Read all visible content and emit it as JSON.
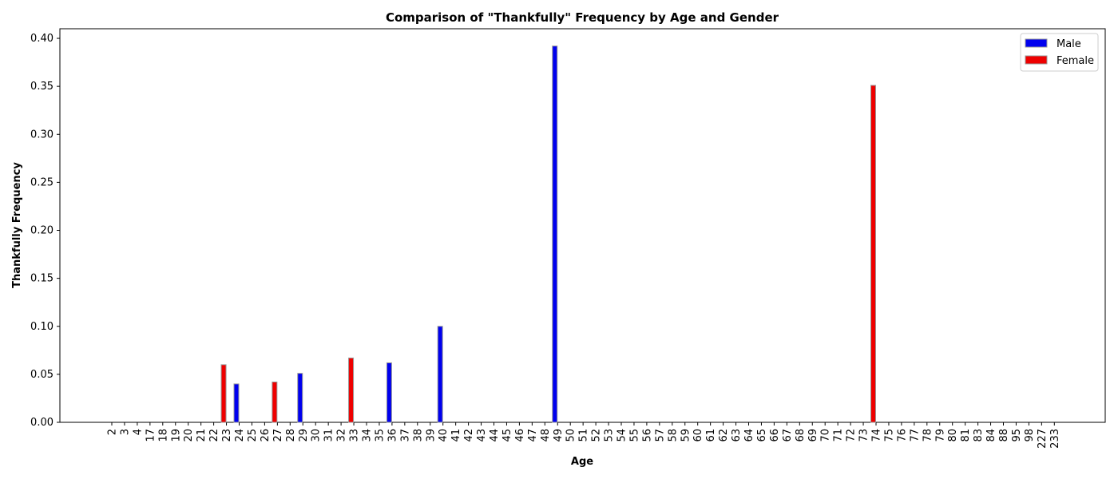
{
  "chart_data": {
    "type": "bar",
    "title": "Comparison of \"Thankfully\" Frequency by Age and Gender",
    "xlabel": "Age",
    "ylabel": "Thankfully Frequency",
    "ylim": [
      0,
      0.41
    ],
    "yticks": [
      "0.00",
      "0.05",
      "0.10",
      "0.15",
      "0.20",
      "0.25",
      "0.30",
      "0.35",
      "0.40"
    ],
    "legend_position": "top-right",
    "grid": false,
    "categories": [
      "2",
      "3",
      "4",
      "17",
      "18",
      "19",
      "20",
      "21",
      "22",
      "23",
      "24",
      "25",
      "26",
      "27",
      "28",
      "29",
      "30",
      "31",
      "32",
      "33",
      "34",
      "35",
      "36",
      "37",
      "38",
      "39",
      "40",
      "41",
      "42",
      "43",
      "44",
      "45",
      "46",
      "47",
      "48",
      "49",
      "50",
      "51",
      "52",
      "53",
      "54",
      "55",
      "56",
      "57",
      "58",
      "59",
      "60",
      "61",
      "62",
      "63",
      "64",
      "65",
      "66",
      "67",
      "68",
      "69",
      "70",
      "71",
      "72",
      "73",
      "74",
      "75",
      "76",
      "77",
      "78",
      "79",
      "80",
      "81",
      "83",
      "84",
      "88",
      "95",
      "98",
      "227",
      "233"
    ],
    "series": [
      {
        "name": "Male",
        "color": "#0000ee",
        "points": [
          {
            "category": "24",
            "value": 0.04
          },
          {
            "category": "29",
            "value": 0.051
          },
          {
            "category": "36",
            "value": 0.062
          },
          {
            "category": "40",
            "value": 0.1
          },
          {
            "category": "49",
            "value": 0.392
          }
        ]
      },
      {
        "name": "Female",
        "color": "#ee0000",
        "points": [
          {
            "category": "23",
            "value": 0.06
          },
          {
            "category": "27",
            "value": 0.042
          },
          {
            "category": "33",
            "value": 0.067
          },
          {
            "category": "74",
            "value": 0.351
          }
        ]
      }
    ]
  }
}
